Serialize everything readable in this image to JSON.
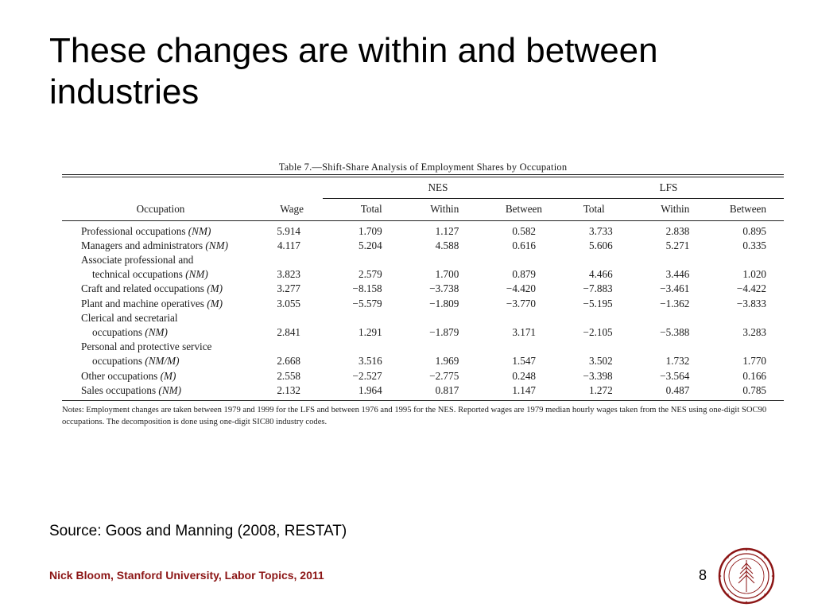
{
  "slide": {
    "title": "These changes are within and between industries",
    "source": "Source: Goos and Manning (2008, RESTAT)",
    "footer": "Nick Bloom, Stanford University, Labor Topics, 2011",
    "page_number": "8",
    "seal_icon": "stanford-seal-icon",
    "accent_color": "#8c1515"
  },
  "table": {
    "caption": "Table 7.—Shift-Share Analysis of Employment Shares by Occupation",
    "group_headers": {
      "nes": "NES",
      "lfs": "LFS"
    },
    "columns": {
      "occupation": "Occupation",
      "wage": "Wage",
      "nes_total": "Total",
      "nes_within": "Within",
      "nes_between": "Between",
      "lfs_total": "Total",
      "lfs_within": "Within",
      "lfs_between": "Between"
    },
    "rows": [
      {
        "occupation": "Professional occupations",
        "tag": "(NM)",
        "wage": "5.914",
        "nes_total": "1.709",
        "nes_within": "1.127",
        "nes_between": "0.582",
        "lfs_total": "3.733",
        "lfs_within": "2.838",
        "lfs_between": "0.895"
      },
      {
        "occupation": "Managers and administrators",
        "tag": "(NM)",
        "wage": "4.117",
        "nes_total": "5.204",
        "nes_within": "4.588",
        "nes_between": "0.616",
        "lfs_total": "5.606",
        "lfs_within": "5.271",
        "lfs_between": "0.335"
      },
      {
        "occupation_line1": "Associate professional and",
        "occupation_line2": "technical occupations",
        "tag": "(NM)",
        "wage": "3.823",
        "nes_total": "2.579",
        "nes_within": "1.700",
        "nes_between": "0.879",
        "lfs_total": "4.466",
        "lfs_within": "3.446",
        "lfs_between": "1.020"
      },
      {
        "occupation": "Craft and related occupations",
        "tag": "(M)",
        "wage": "3.277",
        "nes_total": "−8.158",
        "nes_within": "−3.738",
        "nes_between": "−4.420",
        "lfs_total": "−7.883",
        "lfs_within": "−3.461",
        "lfs_between": "−4.422"
      },
      {
        "occupation": "Plant and machine operatives",
        "tag": "(M)",
        "wage": "3.055",
        "nes_total": "−5.579",
        "nes_within": "−1.809",
        "nes_between": "−3.770",
        "lfs_total": "−5.195",
        "lfs_within": "−1.362",
        "lfs_between": "−3.833"
      },
      {
        "occupation_line1": "Clerical and secretarial",
        "occupation_line2": "occupations",
        "tag": "(NM)",
        "wage": "2.841",
        "nes_total": "1.291",
        "nes_within": "−1.879",
        "nes_between": "3.171",
        "lfs_total": "−2.105",
        "lfs_within": "−5.388",
        "lfs_between": "3.283"
      },
      {
        "occupation_line1": "Personal and protective service",
        "occupation_line2": "occupations",
        "tag": "(NM/M)",
        "wage": "2.668",
        "nes_total": "3.516",
        "nes_within": "1.969",
        "nes_between": "1.547",
        "lfs_total": "3.502",
        "lfs_within": "1.732",
        "lfs_between": "1.770"
      },
      {
        "occupation": "Other occupations",
        "tag": "(M)",
        "wage": "2.558",
        "nes_total": "−2.527",
        "nes_within": "−2.775",
        "nes_between": "0.248",
        "lfs_total": "−3.398",
        "lfs_within": "−3.564",
        "lfs_between": "0.166"
      },
      {
        "occupation": "Sales occupations",
        "tag": "(NM)",
        "wage": "2.132",
        "nes_total": "1.964",
        "nes_within": "0.817",
        "nes_between": "1.147",
        "lfs_total": "1.272",
        "lfs_within": "0.487",
        "lfs_between": "0.785"
      }
    ],
    "notes_line1": "Notes: Employment changes are taken between 1979 and 1999 for the LFS and between 1976 and 1995 for the NES. Reported wages are 1979 median hourly wages taken from the NES using one-digit SOC90",
    "notes_line2": "occupations. The decomposition is done using one-digit SIC80 industry codes."
  }
}
